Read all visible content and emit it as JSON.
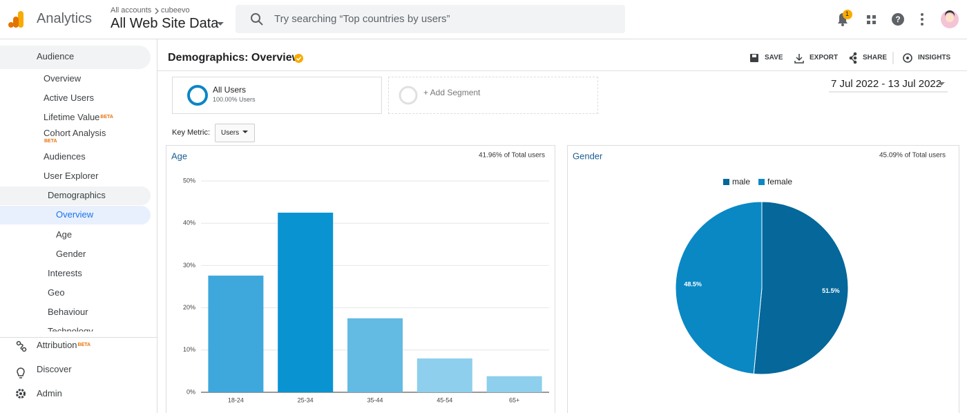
{
  "header": {
    "product": "Analytics",
    "breadcrumb": [
      "All accounts",
      "cubeevo"
    ],
    "property": "All Web Site Data",
    "search_placeholder": "Try searching “Top countries by users”",
    "notification_count": "1"
  },
  "nav": {
    "items": [
      {
        "label": "Audience"
      },
      {
        "label": "Overview"
      },
      {
        "label": "Active Users"
      },
      {
        "label": "Lifetime Value",
        "badge": "BETA"
      },
      {
        "label": "Cohort Analysis",
        "badge": "BETA"
      },
      {
        "label": "Audiences"
      },
      {
        "label": "User Explorer"
      },
      {
        "label": "Demographics"
      },
      {
        "label": "Overview"
      },
      {
        "label": "Age"
      },
      {
        "label": "Gender"
      },
      {
        "label": "Interests"
      },
      {
        "label": "Geo"
      },
      {
        "label": "Behaviour"
      },
      {
        "label": "Technology"
      },
      {
        "label": "Attribution",
        "badge": "BETA"
      },
      {
        "label": "Discover"
      },
      {
        "label": "Admin"
      }
    ]
  },
  "page": {
    "title": "Demographics: Overview",
    "actions": [
      "SAVE",
      "EXPORT",
      "SHARE",
      "INSIGHTS"
    ],
    "segment": {
      "name": "All Users",
      "detail": "100.00% Users"
    },
    "add_segment": "+ Add Segment",
    "date_range": "7 Jul 2022 - 13 Jul 2022",
    "key_metric_label": "Key Metric:",
    "key_metric_value": "Users"
  },
  "chart_data": [
    {
      "type": "bar",
      "title": "Age",
      "annotation": "41.96% of Total users",
      "categories": [
        "18-24",
        "25-34",
        "35-44",
        "45-54",
        "65+"
      ],
      "values": [
        27.6,
        42.5,
        17.5,
        8.0,
        3.8
      ],
      "colors": [
        "#3ea7dc",
        "#0a93d1",
        "#63bae3",
        "#8dcfec",
        "#8dcfec"
      ],
      "ylim": [
        0,
        50
      ],
      "yticks": [
        {
          "value": 0,
          "label": "0%"
        },
        {
          "value": 10,
          "label": "10%"
        },
        {
          "value": 20,
          "label": "20%"
        },
        {
          "value": 30,
          "label": "30%"
        },
        {
          "value": 40,
          "label": "40%"
        },
        {
          "value": 50,
          "label": "50%"
        }
      ],
      "grid": true
    },
    {
      "type": "pie",
      "title": "Gender",
      "annotation": "45.09% of Total users",
      "categories": [
        "male",
        "female"
      ],
      "values": [
        51.5,
        48.5
      ],
      "value_labels": [
        "51.5%",
        "48.5%"
      ],
      "colors": [
        "#05679a",
        "#0a88c4"
      ],
      "legend": "top"
    }
  ]
}
